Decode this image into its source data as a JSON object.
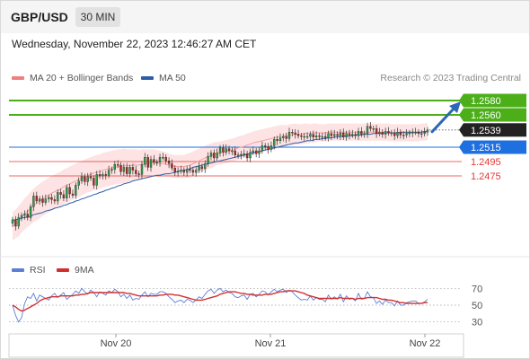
{
  "header": {
    "symbol": "GBP/USD",
    "timeframe": "30 MIN"
  },
  "datetime": "Wednesday, November 22, 2023 12:46:27 AM CET",
  "legend": {
    "bands_label": "MA 20 + Bollinger Bands",
    "ma50_label": "MA 50",
    "rsi_label": "RSI",
    "ma9_label": "9MA"
  },
  "copyright": "Research © 2023 Trading Central",
  "colors": {
    "bands": "#f08080",
    "ma50": "#2c5fa8",
    "resistance": "#4caf1a",
    "support": "#e53935",
    "pivot": "#1e6fe0",
    "rsi": "#5b7fd6",
    "ma9": "#d32f2f",
    "up_arrow": "#2d67b7"
  },
  "chart_data": [
    {
      "type": "candlestick",
      "y_range": [
        1.2375,
        1.26
      ],
      "x_ticks": [
        "Nov 20",
        "Nov 21",
        "Nov 22"
      ],
      "close_price": {
        "value": 1.2539,
        "label": "1.2539"
      },
      "levels": [
        {
          "value": 1.258,
          "label": "1.2580",
          "kind": "resistance",
          "style": "solid"
        },
        {
          "value": 1.256,
          "label": "1.2560",
          "kind": "resistance",
          "style": "solid"
        },
        {
          "value": 1.2515,
          "label": "1.2515",
          "kind": "pivot",
          "style": "solid"
        },
        {
          "value": 1.2495,
          "label": "1.2495",
          "kind": "support",
          "style": "thin"
        },
        {
          "value": 1.2475,
          "label": "1.2475",
          "kind": "support",
          "style": "thin"
        }
      ],
      "closes": [
        1.2414,
        1.2405,
        1.2417,
        1.242,
        1.2422,
        1.2417,
        1.2432,
        1.2447,
        1.244,
        1.2443,
        1.2438,
        1.2443,
        1.2445,
        1.2442,
        1.244,
        1.2452,
        1.2449,
        1.2444,
        1.2459,
        1.245,
        1.2448,
        1.2462,
        1.2468,
        1.2474,
        1.2467,
        1.2474,
        1.2472,
        1.2462,
        1.2477,
        1.2475,
        1.2477,
        1.2476,
        1.2483,
        1.2484,
        1.2491,
        1.249,
        1.2481,
        1.2487,
        1.2478,
        1.2487,
        1.2483,
        1.2478,
        1.2477,
        1.2491,
        1.2501,
        1.2487,
        1.2498,
        1.2494,
        1.2494,
        1.2501,
        1.2501,
        1.2496,
        1.2492,
        1.2486,
        1.248,
        1.2482,
        1.2483,
        1.248,
        1.2484,
        1.2483,
        1.248,
        1.2483,
        1.2488,
        1.2485,
        1.2492,
        1.2502,
        1.2507,
        1.25,
        1.2507,
        1.2514,
        1.2508,
        1.2513,
        1.251,
        1.251,
        1.2504,
        1.2504,
        1.2505,
        1.2506,
        1.25,
        1.2508,
        1.251,
        1.2506,
        1.251,
        1.2517,
        1.2516,
        1.2512,
        1.2517,
        1.2526,
        1.2524,
        1.2528,
        1.253,
        1.2527,
        1.2536,
        1.2535,
        1.2533,
        1.2531,
        1.253,
        1.253,
        1.253,
        1.2533,
        1.2529,
        1.2531,
        1.253,
        1.253,
        1.2528,
        1.2534,
        1.2531,
        1.2533,
        1.2531,
        1.2535,
        1.2529,
        1.2534,
        1.2532,
        1.2533,
        1.2531,
        1.2537,
        1.2533,
        1.2534,
        1.2544,
        1.2541,
        1.2541,
        1.2534,
        1.2536,
        1.2533,
        1.2537,
        1.2535,
        1.2535,
        1.2531,
        1.2536,
        1.2532,
        1.2532,
        1.2534,
        1.2535,
        1.2536,
        1.2536,
        1.2534,
        1.2534,
        1.2536,
        1.2539
      ],
      "ma20": [
        1.2405,
        1.2408,
        1.2412,
        1.2417,
        1.2422,
        1.2426,
        1.243,
        1.2434,
        1.2437,
        1.244,
        1.2443,
        1.2446,
        1.2448,
        1.2451,
        1.2453,
        1.2455,
        1.2457,
        1.246,
        1.2462,
        1.2464,
        1.2466,
        1.2468,
        1.247,
        1.2472,
        1.2474,
        1.2476,
        1.2477,
        1.2479,
        1.248,
        1.2481,
        1.2483,
        1.2484,
        1.2485,
        1.2486,
        1.2487,
        1.2488,
        1.2488,
        1.2489,
        1.2489,
        1.2489,
        1.249,
        1.249,
        1.249,
        1.2491,
        1.2492,
        1.2492,
        1.2493,
        1.2493,
        1.2493,
        1.2492,
        1.2492,
        1.2491,
        1.249,
        1.2489,
        1.2488,
        1.2488,
        1.2488,
        1.2488,
        1.2489,
        1.249,
        1.2492,
        1.2494,
        1.2496,
        1.2498,
        1.25,
        1.2502,
        1.2503,
        1.2505,
        1.2506,
        1.2507,
        1.2508,
        1.2509,
        1.251,
        1.2511,
        1.2512,
        1.2514,
        1.2515,
        1.2516,
        1.2518,
        1.2519,
        1.2521,
        1.2522,
        1.2523,
        1.2524,
        1.2525,
        1.2526,
        1.2527,
        1.2528,
        1.2529,
        1.253,
        1.253,
        1.2531,
        1.2532,
        1.2532,
        1.2533,
        1.2533,
        1.2533,
        1.2534,
        1.2534,
        1.2534,
        1.2535,
        1.2535,
        1.2535,
        1.2535,
        1.2535,
        1.2536,
        1.2536,
        1.2536,
        1.2536,
        1.2536,
        1.2536,
        1.2536,
        1.2536,
        1.2536,
        1.2536,
        1.2536,
        1.2536,
        1.2536,
        1.2536,
        1.2536,
        1.2536,
        1.2536,
        1.2536,
        1.2536,
        1.2536,
        1.2536,
        1.2535,
        1.2535,
        1.2535,
        1.2535,
        1.2535,
        1.2535,
        1.2535,
        1.2535,
        1.2535,
        1.2535,
        1.2536,
        1.2536,
        1.2537
      ],
      "band_width": [
        0.002,
        0.002,
        0.0021,
        0.0021,
        0.0022,
        0.0022,
        0.0023,
        0.0023,
        0.0024,
        0.0024,
        0.0024,
        0.0024,
        0.0024,
        0.0024,
        0.0024,
        0.0024,
        0.0024,
        0.0024,
        0.0024,
        0.0024,
        0.0024,
        0.0024,
        0.0024,
        0.0024,
        0.0024,
        0.0024,
        0.0024,
        0.0024,
        0.0024,
        0.0024,
        0.0024,
        0.0024,
        0.0024,
        0.0024,
        0.0024,
        0.0024,
        0.0024,
        0.0024,
        0.0023,
        0.0023,
        0.0022,
        0.0022,
        0.0021,
        0.0021,
        0.002,
        0.002,
        0.0019,
        0.0019,
        0.0018,
        0.0018,
        0.0017,
        0.0017,
        0.0016,
        0.0016,
        0.0016,
        0.0016,
        0.0016,
        0.0016,
        0.0017,
        0.0017,
        0.0017,
        0.0017,
        0.0017,
        0.0017,
        0.0017,
        0.0017,
        0.0017,
        0.0017,
        0.0016,
        0.0016,
        0.0016,
        0.0016,
        0.0016,
        0.0016,
        0.0016,
        0.0016,
        0.0016,
        0.0016,
        0.0016,
        0.0016,
        0.0016,
        0.0016,
        0.0016,
        0.0016,
        0.0016,
        0.0016,
        0.0016,
        0.0016,
        0.0016,
        0.0016,
        0.0016,
        0.0015,
        0.0015,
        0.0015,
        0.0015,
        0.0014,
        0.0014,
        0.0014,
        0.0014,
        0.0013,
        0.0013,
        0.0013,
        0.0012,
        0.0012,
        0.0012,
        0.0012,
        0.0012,
        0.0012,
        0.0012,
        0.0012,
        0.0012,
        0.0012,
        0.0012,
        0.0012,
        0.0012,
        0.0012,
        0.0012,
        0.0012,
        0.0012,
        0.0012,
        0.0012,
        0.0012,
        0.0012,
        0.0012,
        0.0012,
        0.0012,
        0.0012,
        0.0012,
        0.0012,
        0.0012,
        0.0012,
        0.0012,
        0.0012,
        0.0012,
        0.0012,
        0.0012,
        0.0012,
        0.0012,
        0.0012
      ],
      "ma50": [
        1.2413,
        1.2414,
        1.2415,
        1.2416,
        1.2417,
        1.2418,
        1.2419,
        1.2421,
        1.2422,
        1.2423,
        1.2424,
        1.2426,
        1.2427,
        1.2428,
        1.243,
        1.2431,
        1.2432,
        1.2434,
        1.2435,
        1.2437,
        1.2438,
        1.244,
        1.2441,
        1.2443,
        1.2444,
        1.2446,
        1.2447,
        1.2449,
        1.245,
        1.2452,
        1.2453,
        1.2455,
        1.2456,
        1.2458,
        1.2459,
        1.2461,
        1.2462,
        1.2464,
        1.2465,
        1.2466,
        1.2468,
        1.2469,
        1.247,
        1.2471,
        1.2472,
        1.2473,
        1.2474,
        1.2475,
        1.2476,
        1.2476,
        1.2477,
        1.2478,
        1.2478,
        1.2479,
        1.248,
        1.2481,
        1.2482,
        1.2483,
        1.2484,
        1.2485,
        1.2487,
        1.2488,
        1.2489,
        1.249,
        1.2491,
        1.2492,
        1.2493,
        1.2494,
        1.2495,
        1.2496,
        1.2497,
        1.2498,
        1.2499,
        1.25,
        1.2501,
        1.2502,
        1.2503,
        1.2504,
        1.2505,
        1.2506,
        1.2507,
        1.2508,
        1.2509,
        1.251,
        1.2511,
        1.2512,
        1.2513,
        1.2514,
        1.2515,
        1.2516,
        1.2517,
        1.2518,
        1.2519,
        1.252,
        1.2521,
        1.2521,
        1.2522,
        1.2523,
        1.2524,
        1.2524,
        1.2525,
        1.2526,
        1.2526,
        1.2527,
        1.2527,
        1.2528,
        1.2528,
        1.2529,
        1.2529,
        1.253,
        1.253,
        1.2531,
        1.2531,
        1.2531,
        1.2532,
        1.2532,
        1.2532,
        1.2533,
        1.2533,
        1.2533,
        1.2534,
        1.2534,
        1.2534,
        1.2534,
        1.2535,
        1.2535,
        1.2535,
        1.2535,
        1.2535,
        1.2536,
        1.2536,
        1.2536,
        1.2536,
        1.2536,
        1.2536,
        1.2536,
        1.2536,
        1.2537,
        1.2537
      ]
    },
    {
      "type": "line",
      "y_range": [
        20,
        80
      ],
      "y_ticks": [
        70,
        50,
        30
      ],
      "series": [
        {
          "name": "RSI",
          "values": [
            50,
            38,
            30,
            35,
            52,
            60,
            58,
            64,
            55,
            62,
            60,
            58,
            56,
            61,
            64,
            59,
            62,
            65,
            57,
            60,
            63,
            67,
            64,
            70,
            66,
            63,
            68,
            65,
            60,
            66,
            64,
            62,
            67,
            65,
            69,
            66,
            60,
            63,
            58,
            62,
            56,
            58,
            57,
            62,
            66,
            60,
            64,
            63,
            63,
            66,
            66,
            64,
            60,
            57,
            53,
            55,
            56,
            53,
            57,
            56,
            53,
            56,
            60,
            58,
            63,
            67,
            69,
            64,
            68,
            70,
            66,
            68,
            65,
            64,
            60,
            59,
            61,
            62,
            57,
            63,
            64,
            60,
            63,
            67,
            66,
            62,
            66,
            69,
            66,
            68,
            69,
            65,
            68,
            66,
            62,
            59,
            56,
            57,
            56,
            61,
            56,
            59,
            57,
            57,
            54,
            62,
            57,
            60,
            57,
            63,
            54,
            61,
            57,
            58,
            55,
            64,
            57,
            58,
            66,
            60,
            59,
            52,
            55,
            51,
            56,
            53,
            53,
            49,
            55,
            50,
            50,
            53,
            54,
            55,
            55,
            52,
            52,
            54,
            57
          ]
        },
        {
          "name": "9MA",
          "values": [
            50,
            48,
            45,
            43,
            44,
            46,
            48,
            50,
            52,
            55,
            57,
            58,
            59,
            60,
            60,
            60,
            61,
            61,
            61,
            61,
            61,
            62,
            62,
            63,
            63,
            64,
            65,
            65,
            65,
            65,
            65,
            65,
            65,
            65,
            65,
            65,
            65,
            65,
            64,
            64,
            63,
            62,
            61,
            61,
            61,
            61,
            61,
            61,
            61,
            62,
            62,
            63,
            63,
            63,
            62,
            62,
            61,
            60,
            59,
            58,
            57,
            56,
            56,
            56,
            57,
            58,
            59,
            60,
            61,
            63,
            64,
            65,
            66,
            66,
            66,
            65,
            64,
            64,
            63,
            63,
            62,
            62,
            62,
            62,
            63,
            63,
            63,
            64,
            65,
            66,
            66,
            67,
            67,
            67,
            67,
            66,
            65,
            64,
            62,
            61,
            60,
            59,
            58,
            58,
            58,
            58,
            58,
            58,
            58,
            59,
            58,
            58,
            58,
            58,
            57,
            58,
            58,
            58,
            59,
            59,
            59,
            59,
            58,
            57,
            57,
            56,
            56,
            55,
            54,
            53,
            53,
            52,
            52,
            52,
            52,
            52,
            52,
            53,
            53
          ]
        }
      ]
    }
  ]
}
